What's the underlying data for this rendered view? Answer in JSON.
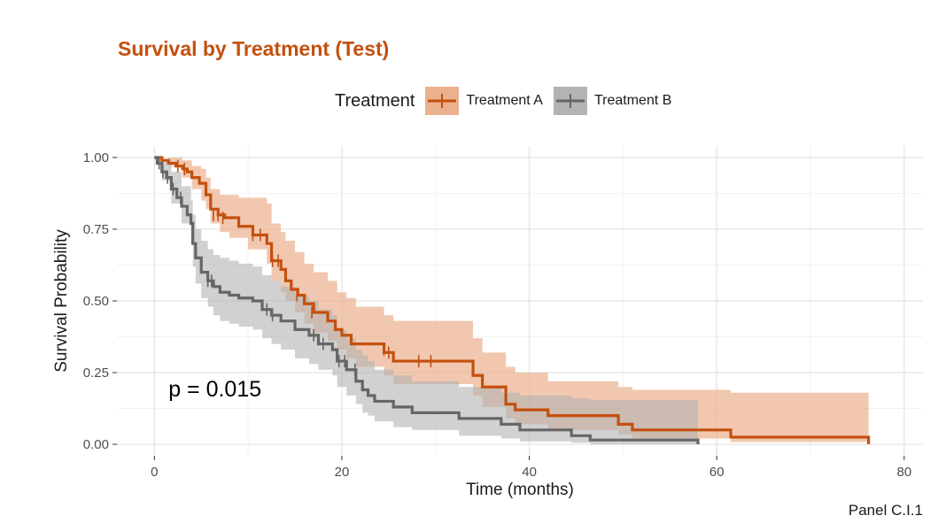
{
  "title": "Survival by Treatment (Test)",
  "caption": "Panel C.I.1",
  "legend": {
    "title": "Treatment",
    "items": [
      {
        "label": "Treatment A",
        "color": "#c4500e",
        "fill": "#ebb08d"
      },
      {
        "label": "Treatment B",
        "color": "#666666",
        "fill": "#b3b3b3"
      }
    ]
  },
  "chart_data": {
    "type": "line",
    "subtype": "kaplan-meier",
    "xlabel": "Time (months)",
    "ylabel": "Survival Probability",
    "xlim": [
      -4,
      82
    ],
    "ylim": [
      -0.04,
      1.04
    ],
    "xticks": [
      0,
      20,
      40,
      60,
      80
    ],
    "xticklabels": [
      "0",
      "20",
      "40",
      "60",
      "80"
    ],
    "yticks": [
      0,
      0.25,
      0.5,
      0.75,
      1
    ],
    "yticklabels": [
      "0.00",
      "0.25",
      "0.50",
      "0.75",
      "1.00"
    ],
    "grid": true,
    "annotation": {
      "text": "p = 0.015",
      "x": 1.5,
      "y": 0.195
    },
    "series": [
      {
        "name": "Treatment A",
        "color": "#c4500e",
        "band_color": "#ebb08d",
        "steps": [
          [
            0,
            1.0
          ],
          [
            0.8,
            0.99
          ],
          [
            1.5,
            0.98
          ],
          [
            2.3,
            0.97
          ],
          [
            3.0,
            0.96
          ],
          [
            3.5,
            0.95
          ],
          [
            4.0,
            0.93
          ],
          [
            4.8,
            0.91
          ],
          [
            5.5,
            0.87
          ],
          [
            6.0,
            0.82
          ],
          [
            6.8,
            0.8
          ],
          [
            7.5,
            0.79
          ],
          [
            9.0,
            0.76
          ],
          [
            10.5,
            0.73
          ],
          [
            12.0,
            0.7
          ],
          [
            12.5,
            0.64
          ],
          [
            13.5,
            0.61
          ],
          [
            14.0,
            0.57
          ],
          [
            14.6,
            0.54
          ],
          [
            15.3,
            0.52
          ],
          [
            16.0,
            0.49
          ],
          [
            17.0,
            0.46
          ],
          [
            18.5,
            0.43
          ],
          [
            19.3,
            0.4
          ],
          [
            20.0,
            0.38
          ],
          [
            21.0,
            0.35
          ],
          [
            24.5,
            0.32
          ],
          [
            25.5,
            0.29
          ],
          [
            34.0,
            0.24
          ],
          [
            35.0,
            0.2
          ],
          [
            37.5,
            0.14
          ],
          [
            38.5,
            0.12
          ],
          [
            42.0,
            0.1
          ],
          [
            49.5,
            0.07
          ],
          [
            51.0,
            0.05
          ],
          [
            61.5,
            0.025
          ],
          [
            76.2,
            0.0
          ]
        ],
        "lower": [
          [
            0,
            1.0
          ],
          [
            1.5,
            0.97
          ],
          [
            3.0,
            0.93
          ],
          [
            4.0,
            0.89
          ],
          [
            5.0,
            0.85
          ],
          [
            5.5,
            0.82
          ],
          [
            6.0,
            0.77
          ],
          [
            7.0,
            0.74
          ],
          [
            8.0,
            0.72
          ],
          [
            10.0,
            0.68
          ],
          [
            12.0,
            0.63
          ],
          [
            12.5,
            0.57
          ],
          [
            13.5,
            0.53
          ],
          [
            14.0,
            0.5
          ],
          [
            15.0,
            0.46
          ],
          [
            16.0,
            0.42
          ],
          [
            17.0,
            0.39
          ],
          [
            18.5,
            0.36
          ],
          [
            19.5,
            0.33
          ],
          [
            20.5,
            0.3
          ],
          [
            21.5,
            0.27
          ],
          [
            24.5,
            0.24
          ],
          [
            25.5,
            0.21
          ],
          [
            34.0,
            0.17
          ],
          [
            35.0,
            0.13
          ],
          [
            37.5,
            0.09
          ],
          [
            38.5,
            0.07
          ],
          [
            42.0,
            0.05
          ],
          [
            49.5,
            0.035
          ],
          [
            51.0,
            0.02
          ],
          [
            61.5,
            0.008
          ],
          [
            76.2,
            0.0
          ]
        ],
        "upper": [
          [
            0,
            1.0
          ],
          [
            1.5,
            1.0
          ],
          [
            3.0,
            0.99
          ],
          [
            4.0,
            0.97
          ],
          [
            5.0,
            0.96
          ],
          [
            5.5,
            0.93
          ],
          [
            6.0,
            0.89
          ],
          [
            7.0,
            0.87
          ],
          [
            9.0,
            0.86
          ],
          [
            12.0,
            0.84
          ],
          [
            12.5,
            0.77
          ],
          [
            13.5,
            0.74
          ],
          [
            14.0,
            0.71
          ],
          [
            15.0,
            0.67
          ],
          [
            16.0,
            0.63
          ],
          [
            17.0,
            0.6
          ],
          [
            18.5,
            0.57
          ],
          [
            19.5,
            0.53
          ],
          [
            20.5,
            0.51
          ],
          [
            21.5,
            0.48
          ],
          [
            24.5,
            0.45
          ],
          [
            25.5,
            0.43
          ],
          [
            34.0,
            0.37
          ],
          [
            35.0,
            0.32
          ],
          [
            37.5,
            0.27
          ],
          [
            38.5,
            0.25
          ],
          [
            42.0,
            0.22
          ],
          [
            49.5,
            0.2
          ],
          [
            51.0,
            0.19
          ],
          [
            61.5,
            0.18
          ],
          [
            76.2,
            0.18
          ]
        ],
        "censors": [
          [
            2.5,
            0.97
          ],
          [
            3.2,
            0.96
          ],
          [
            6.3,
            0.8
          ],
          [
            6.8,
            0.8
          ],
          [
            7.3,
            0.79
          ],
          [
            10.5,
            0.73
          ],
          [
            11.3,
            0.73
          ],
          [
            12.6,
            0.64
          ],
          [
            13.2,
            0.64
          ],
          [
            15.2,
            0.52
          ],
          [
            16.8,
            0.46
          ],
          [
            24.5,
            0.33
          ],
          [
            25.0,
            0.32
          ],
          [
            28.2,
            0.29
          ],
          [
            29.5,
            0.29
          ]
        ]
      },
      {
        "name": "Treatment B",
        "color": "#666666",
        "band_color": "#b3b3b3",
        "steps": [
          [
            0,
            1.0
          ],
          [
            0.3,
            0.98
          ],
          [
            0.8,
            0.95
          ],
          [
            1.3,
            0.93
          ],
          [
            1.8,
            0.89
          ],
          [
            2.4,
            0.86
          ],
          [
            2.9,
            0.83
          ],
          [
            3.5,
            0.8
          ],
          [
            3.9,
            0.77
          ],
          [
            4.1,
            0.7
          ],
          [
            4.4,
            0.65
          ],
          [
            5.0,
            0.6
          ],
          [
            5.7,
            0.57
          ],
          [
            6.3,
            0.55
          ],
          [
            7.0,
            0.53
          ],
          [
            8.0,
            0.52
          ],
          [
            9.0,
            0.51
          ],
          [
            10.5,
            0.5
          ],
          [
            11.5,
            0.47
          ],
          [
            12.5,
            0.45
          ],
          [
            13.5,
            0.43
          ],
          [
            15.0,
            0.4
          ],
          [
            16.5,
            0.38
          ],
          [
            17.5,
            0.35
          ],
          [
            19.0,
            0.33
          ],
          [
            19.5,
            0.29
          ],
          [
            20.5,
            0.26
          ],
          [
            21.5,
            0.22
          ],
          [
            22.2,
            0.19
          ],
          [
            22.8,
            0.17
          ],
          [
            23.5,
            0.15
          ],
          [
            25.5,
            0.13
          ],
          [
            27.5,
            0.11
          ],
          [
            32.5,
            0.09
          ],
          [
            37.0,
            0.07
          ],
          [
            39.0,
            0.05
          ],
          [
            44.5,
            0.03
          ],
          [
            46.5,
            0.015
          ],
          [
            58.0,
            0.0
          ]
        ],
        "lower": [
          [
            0,
            1.0
          ],
          [
            0.8,
            0.92
          ],
          [
            1.8,
            0.84
          ],
          [
            2.9,
            0.77
          ],
          [
            3.9,
            0.7
          ],
          [
            4.1,
            0.62
          ],
          [
            4.4,
            0.56
          ],
          [
            5.0,
            0.51
          ],
          [
            5.7,
            0.48
          ],
          [
            6.3,
            0.45
          ],
          [
            7.0,
            0.43
          ],
          [
            8.0,
            0.42
          ],
          [
            9.0,
            0.41
          ],
          [
            10.5,
            0.4
          ],
          [
            11.5,
            0.37
          ],
          [
            12.5,
            0.35
          ],
          [
            13.5,
            0.33
          ],
          [
            15.0,
            0.3
          ],
          [
            16.5,
            0.28
          ],
          [
            17.5,
            0.26
          ],
          [
            19.0,
            0.24
          ],
          [
            19.5,
            0.2
          ],
          [
            20.5,
            0.17
          ],
          [
            21.5,
            0.14
          ],
          [
            22.2,
            0.11
          ],
          [
            22.8,
            0.1
          ],
          [
            23.5,
            0.08
          ],
          [
            25.5,
            0.06
          ],
          [
            27.5,
            0.05
          ],
          [
            32.5,
            0.03
          ],
          [
            37.0,
            0.02
          ],
          [
            39.0,
            0.01
          ],
          [
            44.5,
            0.005
          ],
          [
            46.5,
            0.0
          ],
          [
            58.0,
            0.0
          ]
        ],
        "upper": [
          [
            0,
            1.0
          ],
          [
            0.8,
            0.99
          ],
          [
            1.8,
            0.95
          ],
          [
            2.9,
            0.9
          ],
          [
            3.9,
            0.85
          ],
          [
            4.1,
            0.8
          ],
          [
            4.4,
            0.75
          ],
          [
            5.0,
            0.71
          ],
          [
            5.7,
            0.68
          ],
          [
            6.3,
            0.66
          ],
          [
            7.0,
            0.65
          ],
          [
            8.0,
            0.64
          ],
          [
            9.0,
            0.63
          ],
          [
            10.5,
            0.62
          ],
          [
            11.5,
            0.59
          ],
          [
            12.5,
            0.57
          ],
          [
            13.5,
            0.55
          ],
          [
            15.0,
            0.52
          ],
          [
            16.5,
            0.5
          ],
          [
            17.5,
            0.47
          ],
          [
            19.0,
            0.45
          ],
          [
            19.5,
            0.4
          ],
          [
            20.5,
            0.37
          ],
          [
            21.5,
            0.33
          ],
          [
            22.2,
            0.31
          ],
          [
            22.8,
            0.29
          ],
          [
            23.5,
            0.26
          ],
          [
            25.5,
            0.24
          ],
          [
            27.5,
            0.22
          ],
          [
            32.5,
            0.2
          ],
          [
            37.0,
            0.18
          ],
          [
            39.0,
            0.17
          ],
          [
            44.5,
            0.16
          ],
          [
            46.5,
            0.155
          ],
          [
            58.0,
            0.155
          ]
        ],
        "censors": [
          [
            0.5,
            0.98
          ],
          [
            0.9,
            0.95
          ],
          [
            1.4,
            0.93
          ],
          [
            2.0,
            0.89
          ],
          [
            2.8,
            0.86
          ],
          [
            5.7,
            0.57
          ],
          [
            6.1,
            0.57
          ],
          [
            12.0,
            0.47
          ],
          [
            12.6,
            0.45
          ],
          [
            17.0,
            0.38
          ],
          [
            18.0,
            0.35
          ],
          [
            19.7,
            0.29
          ],
          [
            20.3,
            0.29
          ],
          [
            21.4,
            0.26
          ]
        ]
      }
    ]
  }
}
